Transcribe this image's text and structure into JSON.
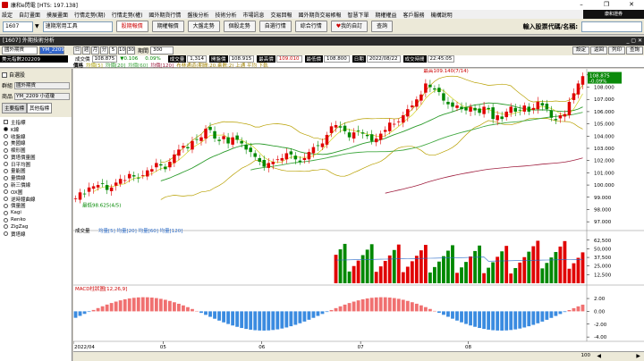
{
  "app": {
    "title": "康和e閃電 [HTS: 197.138]",
    "brand": "康和證券"
  },
  "window_controls": {
    "minimize": "–",
    "restore": "❐",
    "close": "✕"
  },
  "menu": [
    "設定",
    "自訂畫面",
    "摸展畫面",
    "行情走勢(期)",
    "行情走勢(權)",
    "國外期貨行情",
    "盤後分析",
    "技術分析",
    "市場訊息",
    "交易回報",
    "國外期貨交易帳報",
    "智慧下單",
    "期權權益",
    "客戶服務",
    "機構說明"
  ],
  "toolbar": {
    "code": "1607",
    "tool_select": "速期常用工具",
    "buttons": [
      "股期報價",
      "期權報價",
      "大盤走勢",
      "個股走勢",
      "自選行情",
      "綜合行情"
    ],
    "btn_highlight": "股期報價",
    "my_self": "我的自訂",
    "quote_btn": "查詢",
    "search_label": "輸入股票代碼/名稱:"
  },
  "subwindow": {
    "title": "[1607] 外期技術分析",
    "controls": "_ ▢ ✕"
  },
  "controls": {
    "market": "國外期貨",
    "symbol": "YM_2209",
    "periods": [
      "日",
      "週",
      "月",
      "分",
      "5",
      "10",
      "30"
    ],
    "period_label": "期間",
    "period_value": "300",
    "right_buttons": [
      "設定",
      "返回",
      "列印",
      "查詢"
    ]
  },
  "info": {
    "name": "美元指數202209",
    "price_label": "成交價",
    "price": "108.875",
    "change": "▼0.106",
    "pct": "0.09%",
    "vol_label": "成交量",
    "vol": "1,314",
    "open_label": "開盤價",
    "open": "108.915",
    "high_label": "最高價",
    "high": "109.010",
    "low_label": "最低價",
    "low": "108.800",
    "date_label": "日期",
    "date": "2022/08/22",
    "time_label": "成交時間",
    "time": "22:45:05",
    "legend_label": "價格",
    "legend_ma": [
      "均價[5]",
      "均價[20]",
      "均價[60]",
      "均價[120]"
    ],
    "legend_bb": "布林通道(期間:20,乘數:2) 上通 平均 下軌"
  },
  "left": {
    "auto_label": "自選股",
    "group_label": "群組",
    "group_value": "國外期貨",
    "product_label": "商品",
    "product_value": "YM_2209 小道瓊",
    "tabs": [
      "主要指標",
      "其他指標"
    ],
    "indicators": [
      "主指標",
      "K線",
      "收盤線",
      "美國線",
      "樑形圖",
      "寶塔價量圖",
      "日平均圖",
      "量能圖",
      "量價線",
      "新三價線",
      "OX圖",
      "逆時鐘曲線",
      "價量圖",
      "Kagi",
      "Renko",
      "ZigZag",
      "寶塔線"
    ],
    "selected_index": 1
  },
  "chart_data": [
    {
      "type": "candlestick",
      "title": "價格",
      "ylim": [
        96.5,
        109.5
      ],
      "yticks": [
        "109.000",
        "108.000",
        "107.000",
        "106.000",
        "105.000",
        "104.000",
        "103.000",
        "102.000",
        "101.000",
        "100.000",
        "99.000",
        "98.000",
        "97.000"
      ],
      "x_labels": [
        "2022/04",
        "05",
        "06",
        "07",
        "08"
      ],
      "annotations": [
        {
          "text": "最高109.140(7/14)"
        },
        {
          "text": "最低98.625(4/5)"
        }
      ],
      "last_price": "108.875",
      "last_pct": "-0.09%",
      "closes": [
        98.9,
        99.4,
        99.3,
        99.8,
        99.9,
        100.0,
        100.1,
        99.6,
        99.8,
        100.2,
        100.5,
        100.4,
        100.9,
        100.7,
        100.6,
        100.8,
        101.2,
        101.3,
        101.8,
        101.6,
        101.3,
        101.9,
        102.5,
        102.9,
        103.2,
        103.0,
        103.6,
        103.7,
        103.9,
        104.6,
        104.5,
        103.8,
        103.6,
        104.0,
        103.4,
        103.9,
        103.7,
        103.4,
        102.9,
        102.7,
        102.3,
        101.9,
        101.5,
        101.8,
        101.9,
        102.1,
        102.2,
        102.6,
        102.5,
        102.1,
        101.9,
        102.2,
        102.7,
        103.1,
        103.2,
        103.4,
        104.1,
        104.8,
        104.9,
        104.7,
        104.4,
        103.9,
        104.3,
        104.4,
        104.2,
        104.0,
        103.6,
        103.8,
        104.2,
        104.5,
        105.1,
        105.0,
        105.2,
        105.7,
        106.2,
        106.5,
        107.0,
        107.4,
        108.3,
        108.0,
        107.8,
        107.6,
        106.9,
        106.6,
        106.4,
        106.5,
        106.2,
        106.1,
        106.4,
        106.1,
        105.9,
        106.4,
        106.2,
        105.4,
        105.7,
        105.4,
        106.0,
        106.4,
        106.0,
        106.1,
        106.5,
        106.0,
        106.3,
        106.8,
        106.5,
        106.2,
        105.5,
        105.3,
        105.7,
        105.8,
        106.8,
        107.5,
        108.3,
        108.9
      ]
    },
    {
      "type": "bar",
      "title": "成交量",
      "legend": [
        "均量[5]",
        "均量[20]",
        "均量[60]",
        "均量[120]"
      ],
      "ylim": [
        0,
        70000
      ],
      "yticks": [
        "62,500",
        "50,000",
        "37,500",
        "25,000",
        "12,500"
      ]
    },
    {
      "type": "bar",
      "title": "MACD柱狀圖[12,26,9]",
      "ylim": [
        -4.4,
        3.4
      ],
      "yticks": [
        "2.00",
        "0.00",
        "-2.00",
        "-4.00"
      ]
    }
  ],
  "colors": {
    "up": "#e00000",
    "down": "#008800",
    "ma5": "#cccc00",
    "ma20": "#2b9b2b",
    "ma60": "#44aa44",
    "ma120": "#a02040",
    "bg": "#ffffff"
  }
}
